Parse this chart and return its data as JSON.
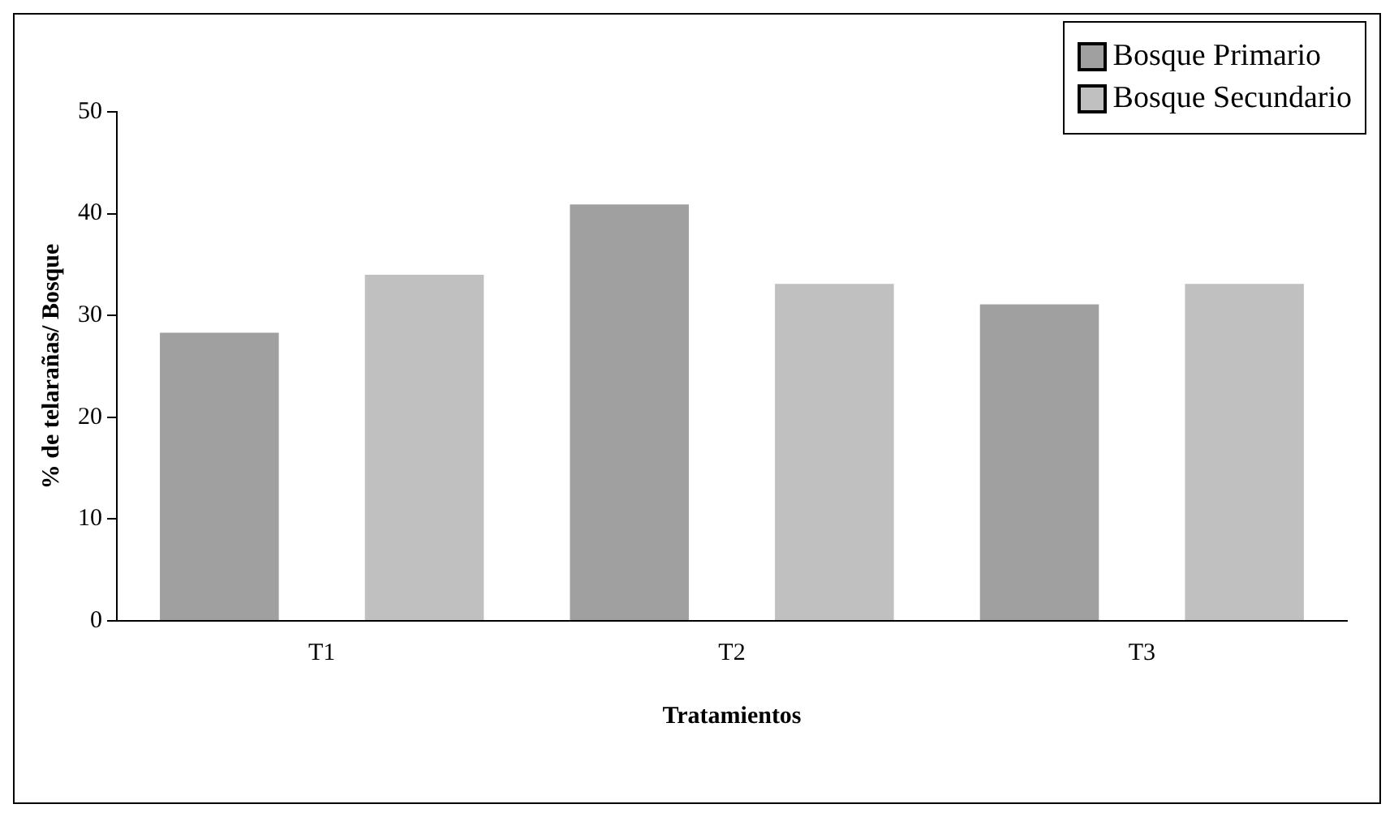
{
  "chart_data": {
    "type": "bar",
    "xlabel": "Tratamientos",
    "ylabel": "% de telarañas/ Bosque",
    "categories": [
      "T1",
      "T2",
      "T3"
    ],
    "series": [
      {
        "name": "Bosque Primario",
        "color": "#a0a0a0",
        "values": [
          28.3,
          40.9,
          31.1
        ]
      },
      {
        "name": "Bosque Secundario",
        "color": "#c0c0c0",
        "values": [
          34.0,
          33.1,
          33.1
        ]
      }
    ],
    "ylim": [
      0,
      50
    ],
    "yticks": [
      0,
      10,
      20,
      30,
      40,
      50
    ],
    "grid": false,
    "legend": "top right"
  }
}
